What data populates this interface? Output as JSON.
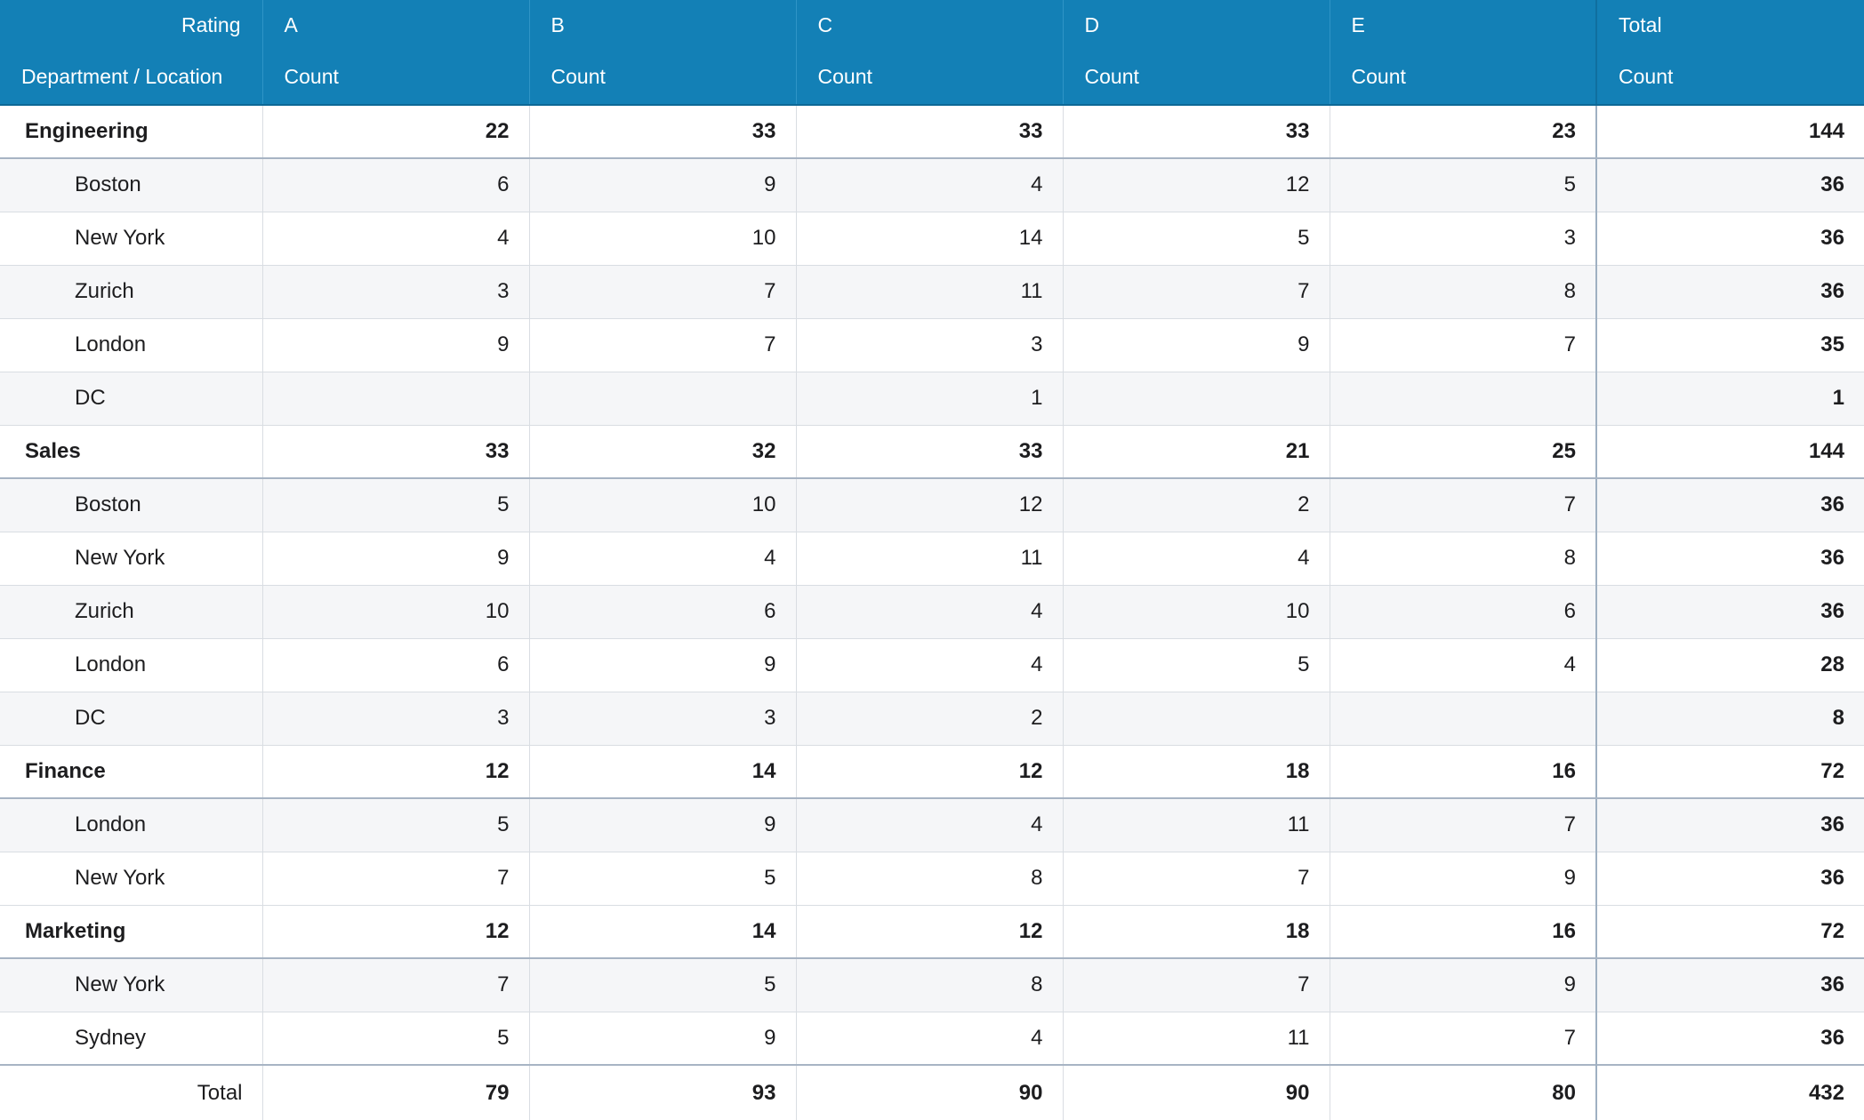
{
  "header": {
    "corner_top": "Rating",
    "corner_bottom": "Department / Location",
    "columns": [
      "A",
      "B",
      "C",
      "D",
      "E",
      "Total"
    ],
    "measure": "Count"
  },
  "rows": [
    {
      "type": "group",
      "label": "Engineering",
      "values": [
        "22",
        "33",
        "33",
        "33",
        "23"
      ],
      "total": "144"
    },
    {
      "type": "child",
      "label": "Boston",
      "values": [
        "6",
        "9",
        "4",
        "12",
        "5"
      ],
      "total": "36"
    },
    {
      "type": "child",
      "label": "New York",
      "values": [
        "4",
        "10",
        "14",
        "5",
        "3"
      ],
      "total": "36"
    },
    {
      "type": "child",
      "label": "Zurich",
      "values": [
        "3",
        "7",
        "11",
        "7",
        "8"
      ],
      "total": "36"
    },
    {
      "type": "child",
      "label": "London",
      "values": [
        "9",
        "7",
        "3",
        "9",
        "7"
      ],
      "total": "35"
    },
    {
      "type": "child",
      "label": "DC",
      "values": [
        "",
        "",
        "1",
        "",
        ""
      ],
      "total": "1"
    },
    {
      "type": "group",
      "label": "Sales",
      "values": [
        "33",
        "32",
        "33",
        "21",
        "25"
      ],
      "total": "144"
    },
    {
      "type": "child",
      "label": "Boston",
      "values": [
        "5",
        "10",
        "12",
        "2",
        "7"
      ],
      "total": "36"
    },
    {
      "type": "child",
      "label": "New York",
      "values": [
        "9",
        "4",
        "11",
        "4",
        "8"
      ],
      "total": "36"
    },
    {
      "type": "child",
      "label": "Zurich",
      "values": [
        "10",
        "6",
        "4",
        "10",
        "6"
      ],
      "total": "36"
    },
    {
      "type": "child",
      "label": "London",
      "values": [
        "6",
        "9",
        "4",
        "5",
        "4"
      ],
      "total": "28"
    },
    {
      "type": "child",
      "label": "DC",
      "values": [
        "3",
        "3",
        "2",
        "",
        ""
      ],
      "total": "8"
    },
    {
      "type": "group",
      "label": "Finance",
      "values": [
        "12",
        "14",
        "12",
        "18",
        "16"
      ],
      "total": "72"
    },
    {
      "type": "child",
      "label": "London",
      "values": [
        "5",
        "9",
        "4",
        "11",
        "7"
      ],
      "total": "36"
    },
    {
      "type": "child",
      "label": "New York",
      "values": [
        "7",
        "5",
        "8",
        "7",
        "9"
      ],
      "total": "36"
    },
    {
      "type": "group",
      "label": "Marketing",
      "values": [
        "12",
        "14",
        "12",
        "18",
        "16"
      ],
      "total": "72"
    },
    {
      "type": "child",
      "label": "New York",
      "values": [
        "7",
        "5",
        "8",
        "7",
        "9"
      ],
      "total": "36"
    },
    {
      "type": "child",
      "label": "Sydney",
      "values": [
        "5",
        "9",
        "4",
        "11",
        "7"
      ],
      "total": "36"
    }
  ],
  "grand_total": {
    "label": "Total",
    "values": [
      "79",
      "93",
      "90",
      "90",
      "80"
    ],
    "total": "432"
  },
  "colors": {
    "header_bg": "#1380b6",
    "header_text": "#ffffff",
    "alt_row_bg": "#f5f6f8",
    "grid_line": "#d9dde2"
  }
}
